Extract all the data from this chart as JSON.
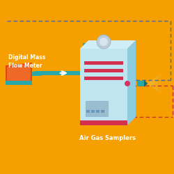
{
  "bg_color": "#F5A000",
  "teal": "#28A8A8",
  "light_blue_face": "#BEE5F0",
  "light_blue_top": "#D0EEF8",
  "light_blue_right": "#8CCCE0",
  "red_stripe": "#D43050",
  "pink_dot": "#D83060",
  "dark_dashed_color": "#4466AA",
  "red_dashed_color": "#CC3333",
  "white": "#FFFFFF",
  "gray_panel": "#9BBDD0",
  "gray_panel_dark": "#6699BB",
  "cap_color": "#BCCCD8",
  "cap_light": "#D8E4EC",
  "orange_body": "#E04808",
  "orange_light": "#F06828",
  "orange_teal_base": "#28A8A8",
  "spray_color": "#F0B830",
  "nozzle_teal": "#20A0A0",
  "title_label": "Air Gas Samplers",
  "meter_label": "Digital Mass\nFlow Meter",
  "label_color": "#FFFFFF"
}
